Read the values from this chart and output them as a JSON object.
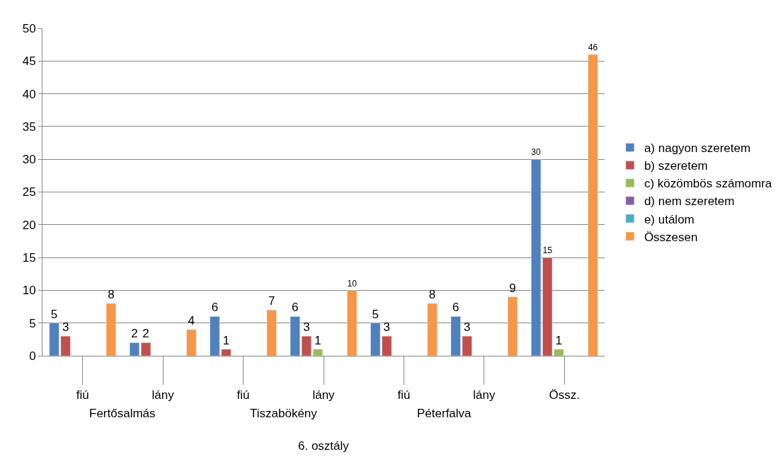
{
  "chart_data": {
    "type": "bar",
    "categories": [
      "fiú",
      "lány",
      "fiú",
      "lány",
      "fiú",
      "lány",
      "Össz."
    ],
    "series": [
      {
        "name": "a) nagyon szeretem",
        "color": "#4f81bd",
        "values": [
          5,
          2,
          6,
          6,
          5,
          6,
          30
        ]
      },
      {
        "name": "b) szeretem",
        "color": "#c0504d",
        "values": [
          3,
          2,
          1,
          3,
          3,
          3,
          15
        ]
      },
      {
        "name": "c) közömbös számomra",
        "color": "#9bbb59",
        "values": [
          null,
          null,
          null,
          1,
          null,
          null,
          1
        ]
      },
      {
        "name": "d) nem szeretem",
        "color": "#8064a2",
        "values": [
          null,
          null,
          null,
          null,
          null,
          null,
          null
        ]
      },
      {
        "name": "e) utálom",
        "color": "#4bacc6",
        "values": [
          null,
          null,
          null,
          null,
          null,
          null,
          null
        ]
      },
      {
        "name": "Összesen",
        "color": "#f79646",
        "values": [
          8,
          4,
          7,
          10,
          8,
          9,
          46
        ]
      }
    ],
    "annotations": [
      "Fertősalmás",
      "Tiszabökény",
      "Péterfalva",
      "6. osztály"
    ],
    "ylim": [
      0,
      50
    ],
    "yticks": [
      0,
      5,
      10,
      15,
      20,
      25,
      30,
      35,
      40,
      45,
      50
    ],
    "grid": "y",
    "legend": "right",
    "data_labels": true
  }
}
